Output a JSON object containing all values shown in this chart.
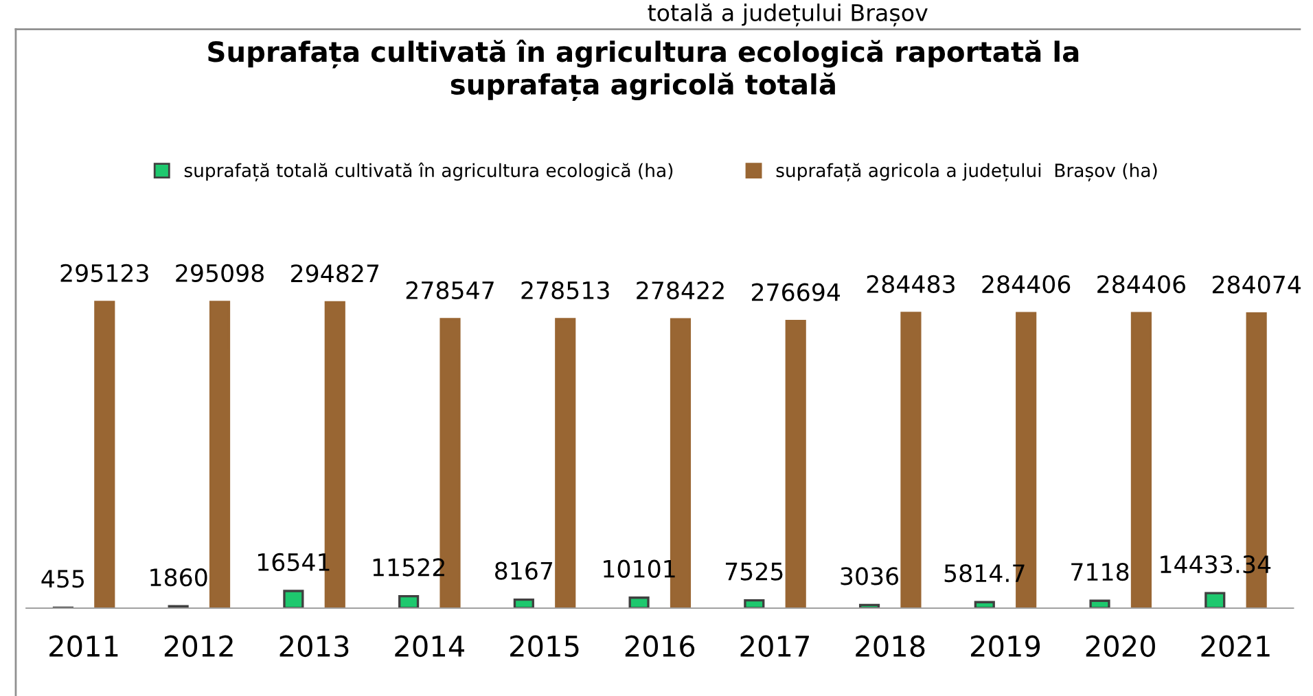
{
  "chart_data": {
    "type": "bar",
    "title": "Suprafața cultivată în agricultura ecologică raportată la\nsuprafața agricolă totală",
    "annotations": [
      "totală a județului Brașov"
    ],
    "categories": [
      "2011",
      "2012",
      "2013",
      "2014",
      "2015",
      "2016",
      "2017",
      "2018",
      "2019",
      "2020",
      "2021"
    ],
    "series": [
      {
        "name": "suprafață totală cultivată în agricultura ecologică (ha)",
        "color": "#1ec86e",
        "values": [
          455,
          1860,
          16541,
          11522,
          8167,
          10101,
          7525,
          3036,
          5814.7,
          7118,
          14433.34
        ]
      },
      {
        "name": "suprafață agricola a județului  Brașov (ha)",
        "color": "#996633",
        "values": [
          295123,
          295098,
          294827,
          278547,
          278513,
          278422,
          276694,
          284483,
          284406,
          284406,
          284074
        ]
      }
    ],
    "data_labels": true,
    "legend": "top",
    "grid": false
  }
}
